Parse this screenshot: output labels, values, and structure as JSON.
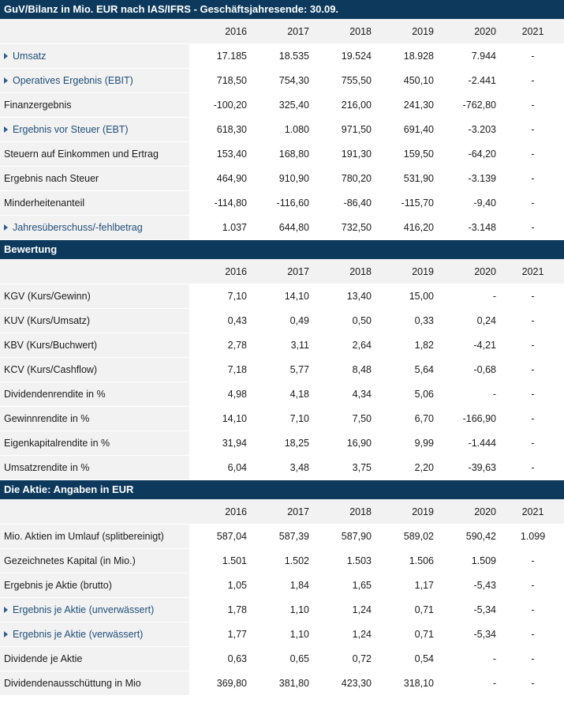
{
  "sections": [
    {
      "title": "GuV/Bilanz in Mio. EUR nach IAS/IFRS - Geschäftsjahresende: 30.09.",
      "years": [
        "2016",
        "2017",
        "2018",
        "2019",
        "2020",
        "2021"
      ],
      "rows": [
        {
          "label": "Umsatz",
          "link": true,
          "values": [
            "17.185",
            "18.535",
            "19.524",
            "18.928",
            "7.944",
            "-"
          ]
        },
        {
          "label": "Operatives Ergebnis (EBIT)",
          "link": true,
          "values": [
            "718,50",
            "754,30",
            "755,50",
            "450,10",
            "-2.441",
            "-"
          ]
        },
        {
          "label": "Finanzergebnis",
          "link": false,
          "values": [
            "-100,20",
            "325,40",
            "216,00",
            "241,30",
            "-762,80",
            "-"
          ]
        },
        {
          "label": "Ergebnis vor Steuer (EBT)",
          "link": true,
          "values": [
            "618,30",
            "1.080",
            "971,50",
            "691,40",
            "-3.203",
            "-"
          ]
        },
        {
          "label": "Steuern auf Einkommen und Ertrag",
          "link": false,
          "values": [
            "153,40",
            "168,80",
            "191,30",
            "159,50",
            "-64,20",
            "-"
          ]
        },
        {
          "label": "Ergebnis nach Steuer",
          "link": false,
          "values": [
            "464,90",
            "910,90",
            "780,20",
            "531,90",
            "-3.139",
            "-"
          ]
        },
        {
          "label": "Minderheitenanteil",
          "link": false,
          "values": [
            "-114,80",
            "-116,60",
            "-86,40",
            "-115,70",
            "-9,40",
            "-"
          ]
        },
        {
          "label": "Jahresüberschuss/-fehlbetrag",
          "link": true,
          "values": [
            "1.037",
            "644,80",
            "732,50",
            "416,20",
            "-3.148",
            "-"
          ]
        }
      ]
    },
    {
      "title": "Bewertung",
      "years": [
        "2016",
        "2017",
        "2018",
        "2019",
        "2020",
        "2021"
      ],
      "rows": [
        {
          "label": "KGV (Kurs/Gewinn)",
          "link": false,
          "values": [
            "7,10",
            "14,10",
            "13,40",
            "15,00",
            "-",
            "-"
          ]
        },
        {
          "label": "KUV (Kurs/Umsatz)",
          "link": false,
          "values": [
            "0,43",
            "0,49",
            "0,50",
            "0,33",
            "0,24",
            "-"
          ]
        },
        {
          "label": "KBV (Kurs/Buchwert)",
          "link": false,
          "values": [
            "2,78",
            "3,11",
            "2,64",
            "1,82",
            "-4,21",
            "-"
          ]
        },
        {
          "label": "KCV (Kurs/Cashflow)",
          "link": false,
          "values": [
            "7,18",
            "5,77",
            "8,48",
            "5,64",
            "-0,68",
            "-"
          ]
        },
        {
          "label": "Dividendenrendite in %",
          "link": false,
          "values": [
            "4,98",
            "4,18",
            "4,34",
            "5,06",
            "-",
            "-"
          ]
        },
        {
          "label": "Gewinnrendite in %",
          "link": false,
          "values": [
            "14,10",
            "7,10",
            "7,50",
            "6,70",
            "-166,90",
            "-"
          ]
        },
        {
          "label": "Eigenkapitalrendite in %",
          "link": false,
          "values": [
            "31,94",
            "18,25",
            "16,90",
            "9,99",
            "-1.444",
            "-"
          ]
        },
        {
          "label": "Umsatzrendite in %",
          "link": false,
          "values": [
            "6,04",
            "3,48",
            "3,75",
            "2,20",
            "-39,63",
            "-"
          ]
        }
      ]
    },
    {
      "title": "Die Aktie: Angaben in EUR",
      "years": [
        "2016",
        "2017",
        "2018",
        "2019",
        "2020",
        "2021"
      ],
      "rows": [
        {
          "label": "Mio. Aktien im Umlauf (splitbereinigt)",
          "link": false,
          "values": [
            "587,04",
            "587,39",
            "587,90",
            "589,02",
            "590,42",
            "1.099"
          ]
        },
        {
          "label": "Gezeichnetes Kapital (in Mio.)",
          "link": false,
          "values": [
            "1.501",
            "1.502",
            "1.503",
            "1.506",
            "1.509",
            "-"
          ]
        },
        {
          "label": "Ergebnis je Aktie (brutto)",
          "link": false,
          "values": [
            "1,05",
            "1,84",
            "1,65",
            "1,17",
            "-5,43",
            "-"
          ]
        },
        {
          "label": "Ergebnis je Aktie (unverwässert)",
          "link": true,
          "values": [
            "1,78",
            "1,10",
            "1,24",
            "0,71",
            "-5,34",
            "-"
          ]
        },
        {
          "label": "Ergebnis je Aktie (verwässert)",
          "link": true,
          "values": [
            "1,77",
            "1,10",
            "1,24",
            "0,71",
            "-5,34",
            "-"
          ]
        },
        {
          "label": "Dividende je Aktie",
          "link": false,
          "values": [
            "0,63",
            "0,65",
            "0,72",
            "0,54",
            "-",
            "-"
          ]
        },
        {
          "label": "Dividendenausschüttung in Mio",
          "link": false,
          "values": [
            "369,80",
            "381,80",
            "423,30",
            "318,10",
            "-",
            "-"
          ]
        }
      ]
    }
  ]
}
